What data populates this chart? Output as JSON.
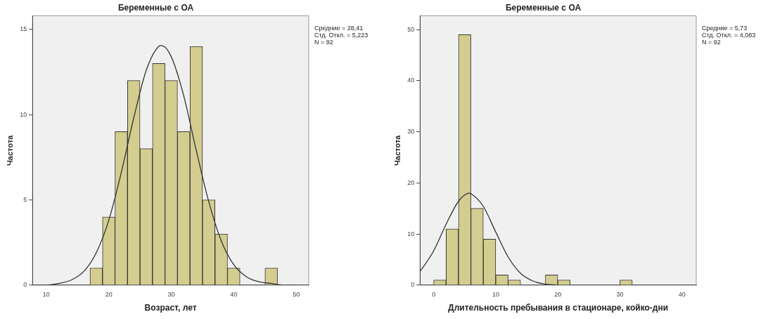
{
  "chart_data": [
    {
      "type": "histogram",
      "title": "Беременные с ОА",
      "xlabel": "Возраст, лет",
      "ylabel": "Частота",
      "bins": [
        17,
        19,
        21,
        23,
        25,
        27,
        29,
        31,
        33,
        35,
        37,
        39,
        41,
        43,
        45,
        47
      ],
      "series": [
        {
          "color": "#d3cd8f",
          "values": [
            1,
            4,
            9,
            12,
            8,
            13,
            12,
            9,
            14,
            5,
            3,
            1,
            0,
            0,
            1
          ]
        },
        {
          "type": "line",
          "color": "#333333",
          "x": [
            8,
            10,
            12,
            14,
            16,
            18,
            20,
            22,
            24,
            26,
            28,
            28.41,
            30,
            32,
            34,
            36,
            38,
            40,
            42,
            44,
            46,
            48,
            50
          ],
          "values": [
            0.0,
            0.0,
            0.1,
            0.3,
            0.8,
            1.9,
            3.8,
            6.6,
            9.8,
            12.6,
            14.0,
            14.05,
            13.4,
            11.1,
            7.9,
            4.9,
            2.6,
            1.2,
            0.5,
            0.2,
            0.1,
            0.0,
            0.0
          ]
        }
      ],
      "xlim": [
        7.8,
        52
      ],
      "xticks": [
        10,
        20,
        30,
        40,
        50
      ],
      "ylim": [
        0,
        15.8
      ],
      "yticks": [
        0,
        5,
        10,
        15
      ],
      "grid": false,
      "legend": false,
      "annotations": [
        "Средние = 28,41",
        "Стд. Откл. = 5,223",
        "N = 92"
      ]
    },
    {
      "type": "histogram",
      "title": "Беременные с ОА",
      "xlabel": "Длительность пребывания в стационаре, койко-дни",
      "ylabel": "Частота",
      "bins": [
        0,
        2,
        4,
        6,
        8,
        10,
        12,
        14,
        16,
        18,
        20,
        22,
        24,
        26,
        28,
        30,
        32
      ],
      "series": [
        {
          "color": "#d3cd8f",
          "values": [
            1,
            11,
            49,
            15,
            9,
            2,
            1,
            0,
            0,
            2,
            1,
            0,
            0,
            0,
            0,
            1
          ]
        },
        {
          "type": "line",
          "color": "#333333",
          "x": [
            -2.2,
            -2,
            0,
            2,
            4,
            5.73,
            6,
            8,
            10,
            12,
            14,
            16,
            18,
            20
          ],
          "values": [
            2.7,
            3.0,
            6.7,
            11.9,
            16.4,
            18.0,
            17.9,
            15.4,
            10.4,
            5.5,
            2.3,
            0.8,
            0.2,
            0.0
          ]
        }
      ],
      "xlim": [
        -2.2,
        42.3
      ],
      "xticks": [
        0,
        10,
        20,
        30,
        40
      ],
      "ylim": [
        0,
        52.7
      ],
      "yticks": [
        0,
        10,
        20,
        30,
        40,
        50
      ],
      "grid": false,
      "legend": false,
      "annotations": [
        "Средние = 5,73",
        "Стд. Откл. = 4,083",
        "N = 92"
      ]
    }
  ]
}
